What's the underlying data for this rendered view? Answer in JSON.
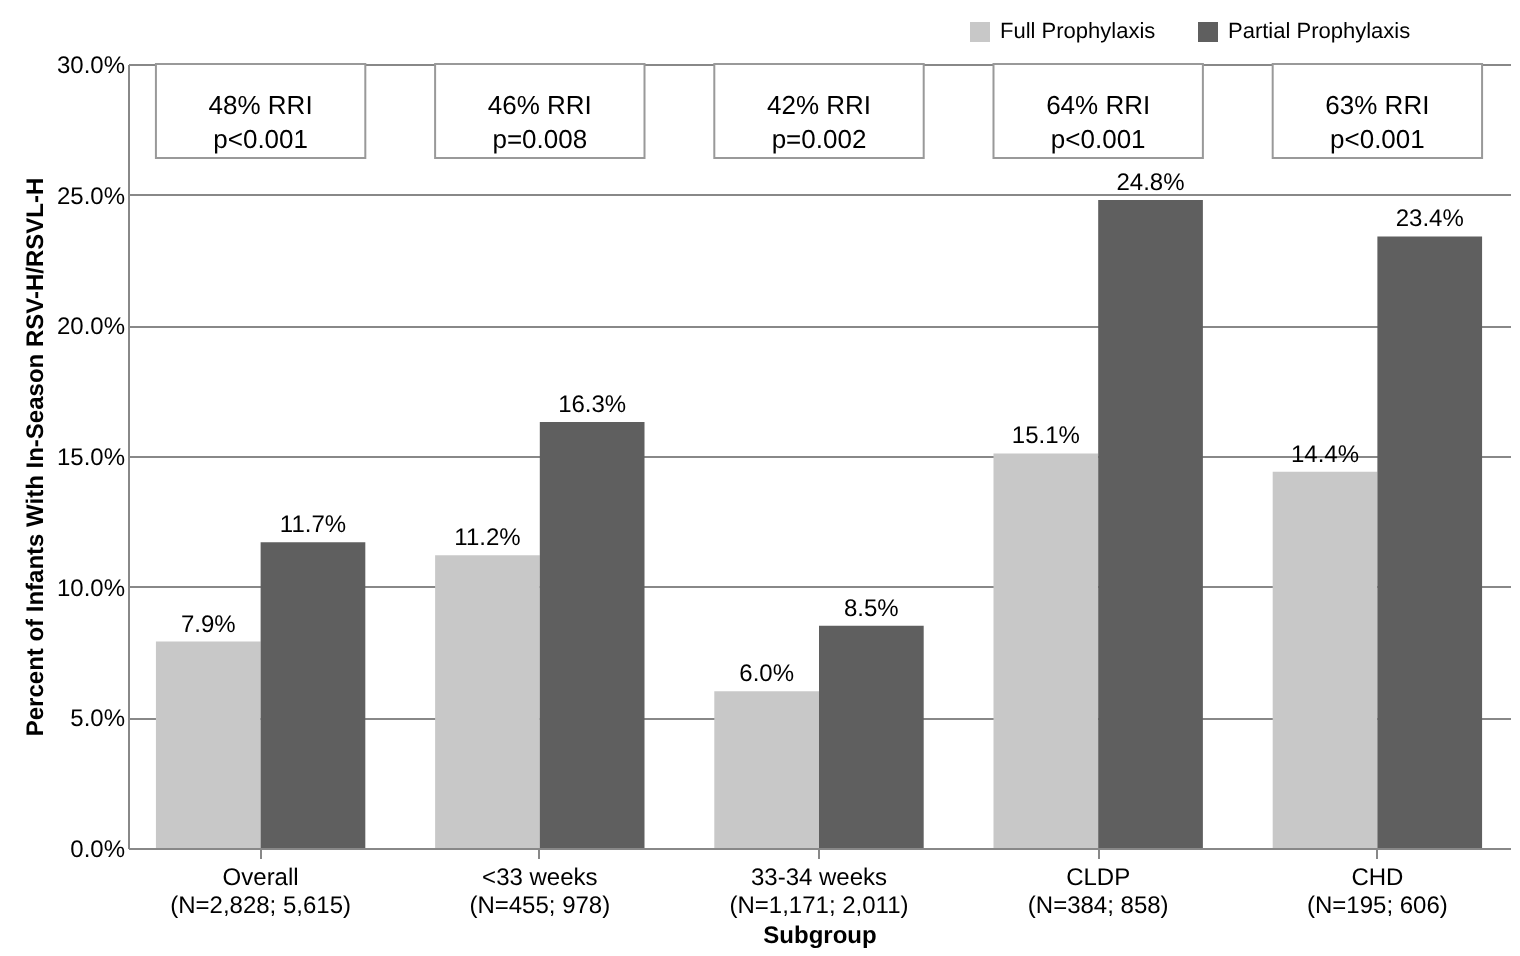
{
  "chart_data": {
    "type": "bar",
    "xlabel": "Subgroup",
    "ylabel": "Percent of Infants With In-Season RSV-H/RSVL-H",
    "categories": [
      "Overall\n(N=2,828; 5,615)",
      "<33 weeks\n(N=455; 978)",
      "33-34 weeks\n(N=1,171; 2,011)",
      "CLDP\n(N=384; 858)",
      "CHD\n(N=195; 606)"
    ],
    "series": [
      {
        "name": "Full Prophylaxis",
        "color": "#c8c8c8",
        "values": [
          7.9,
          11.2,
          6.0,
          15.1,
          14.4
        ],
        "value_labels": [
          "7.9%",
          "11.2%",
          "6.0%",
          "15.1%",
          "14.4%"
        ]
      },
      {
        "name": "Partial Prophylaxis",
        "color": "#5f5f5f",
        "values": [
          11.7,
          16.3,
          8.5,
          24.8,
          23.4
        ],
        "value_labels": [
          "11.7%",
          "16.3%",
          "8.5%",
          "24.8%",
          "23.4%"
        ]
      }
    ],
    "ylim": [
      0,
      30
    ],
    "yticks": [
      {
        "value": 0,
        "label": "0.0%"
      },
      {
        "value": 5,
        "label": "5.0%"
      },
      {
        "value": 10,
        "label": "10.0%"
      },
      {
        "value": 15,
        "label": "15.0%"
      },
      {
        "value": 20,
        "label": "20.0%"
      },
      {
        "value": 25,
        "label": "25.0%"
      },
      {
        "value": 30,
        "label": "30.0%"
      }
    ],
    "grid": "y",
    "legend": "top right",
    "annotations": [
      "48% RRI\np<0.001",
      "46% RRI\np=0.008",
      "42% RRI\np=0.002",
      "64% RRI\np<0.001",
      "63% RRI\np<0.001"
    ]
  }
}
